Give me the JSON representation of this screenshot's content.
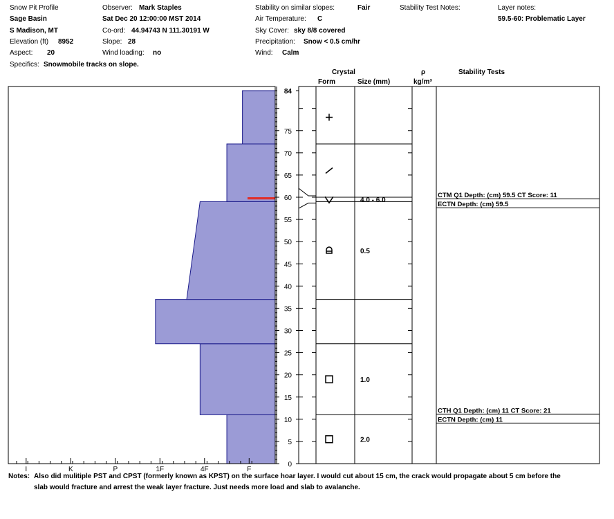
{
  "header": {
    "title": "Snow Pit Profile",
    "location": "Sage Basin",
    "region": "S Madison, MT",
    "elevation_label": "Elevation (ft)",
    "elevation": "8952",
    "aspect_label": "Aspect:",
    "aspect": "20",
    "specifics_label": "Specifics:",
    "specifics": "Snowmobile tracks on slope.",
    "observer_label": "Observer:",
    "observer": "Mark Staples",
    "datetime": "Sat Dec 20 12:00:00 MST 2014",
    "coord_label": "Co-ord:",
    "coord": "44.94743 N 111.30191 W",
    "slope_label": "Slope:",
    "slope": "28",
    "wind_loading_label": "Wind loading:",
    "wind_loading": "no",
    "stability_label": "Stability on similar slopes:",
    "stability": "Fair",
    "air_temp_label": "Air Temperature:",
    "air_temp": "C",
    "sky_label": "Sky Cover:",
    "sky": "sky 8/8 covered",
    "precip_label": "Precipitation:",
    "precip": "Snow < 0.5 cm/hr",
    "wind_label": "Wind:",
    "wind": "Calm",
    "stability_notes_label": "Stability Test Notes:",
    "layer_notes_label": "Layer notes:",
    "layer_notes": "59.5-60: Problematic Layer"
  },
  "columns": {
    "crystal": "Crystal",
    "form": "Form",
    "size": "Size (mm)",
    "rho": "ρ",
    "rho_unit": "kg/m³",
    "stability_tests": "Stability Tests"
  },
  "notes": {
    "label": "Notes:",
    "line1": "Also did mulitiple PST and CPST (formerly known as KPST) on the surface hoar layer. I would cut about 15 cm, the crack would propagate about 5 cm before the",
    "line2": "slab would fracture and arrest the weak layer fracture. Just needs more load and slab to avalanche."
  },
  "chart_data": {
    "type": "bar",
    "title": "",
    "xlabel": "",
    "ylabel": "",
    "ylim": [
      0,
      84
    ],
    "hardness_ticks": [
      "I",
      "K",
      "P",
      "1F",
      "4F",
      "F"
    ],
    "hardness_positions": [
      0,
      1,
      2,
      3,
      4,
      5
    ],
    "hardness_axis_max": 5.5,
    "depth_tick_labels": [
      "0",
      "5",
      "10",
      "15",
      "20",
      "25",
      "30",
      "35",
      "40",
      "45",
      "50",
      "55",
      "60",
      "65",
      "70",
      "75",
      "84"
    ],
    "depth_ticks": [
      0,
      5,
      10,
      15,
      20,
      25,
      30,
      35,
      40,
      45,
      50,
      55,
      60,
      65,
      70,
      75,
      84
    ],
    "hardness_layers": [
      {
        "bottom": 0,
        "top": 11,
        "hardness_bottom": 4.5,
        "hardness_top": 4.5
      },
      {
        "bottom": 11,
        "top": 27,
        "hardness_bottom": 3.9,
        "hardness_top": 3.9
      },
      {
        "bottom": 27,
        "top": 37,
        "hardness_bottom": 2.9,
        "hardness_top": 2.9
      },
      {
        "bottom": 37,
        "top": 59,
        "hardness_bottom": 3.6,
        "hardness_top": 3.9
      },
      {
        "bottom": 59,
        "top": 72,
        "hardness_bottom": 4.5,
        "hardness_top": 4.5
      },
      {
        "bottom": 72,
        "top": 84,
        "hardness_bottom": 4.85,
        "hardness_top": 4.85
      }
    ],
    "problematic_layer": {
      "bottom": 59.5,
      "top": 60,
      "color": "#e0302a"
    },
    "fill_color": "#9b9bd6",
    "boundaries": [
      0,
      11,
      27,
      37,
      59,
      60,
      72,
      84
    ],
    "crystal_layers": [
      {
        "bottom": 72,
        "top": 84,
        "symbol": "plus",
        "size": ""
      },
      {
        "bottom": 60,
        "top": 72,
        "symbol": "slash",
        "size": ""
      },
      {
        "bottom": 59,
        "top": 60,
        "symbol": "vee",
        "size": "4.0 - 6.0"
      },
      {
        "bottom": 37,
        "top": 59,
        "symbol": "rounded-facet",
        "size": "0.5"
      },
      {
        "bottom": 27,
        "top": 37,
        "symbol": "",
        "size": ""
      },
      {
        "bottom": 11,
        "top": 27,
        "symbol": "square",
        "size": "1.0"
      },
      {
        "bottom": 0,
        "top": 11,
        "symbol": "square",
        "size": "2.0"
      }
    ],
    "stability_tests": [
      {
        "depth": 59.5,
        "text1": "CTM Q1 Depth: (cm) 59.5 CT Score: 11",
        "text2": "ECTN  Depth: (cm) 59.5"
      },
      {
        "depth": 11,
        "text1": "CTH Q1 Depth: (cm) 11 CT Score: 21",
        "text2": "ECTN  Depth: (cm) 11"
      }
    ]
  }
}
